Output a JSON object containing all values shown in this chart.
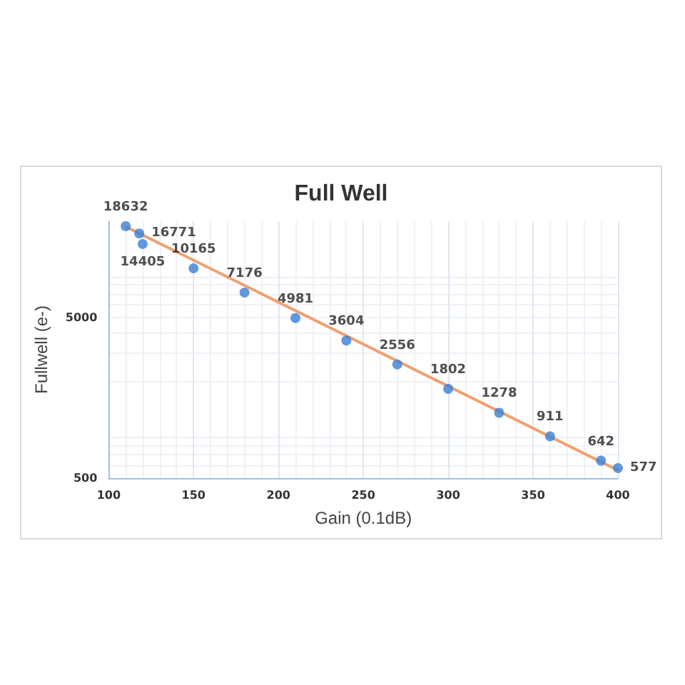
{
  "chart_data": {
    "type": "scatter",
    "title": "Full Well",
    "xlabel": "Gain (0.1dB)",
    "ylabel": "Fullwell (e-)",
    "x": [
      110,
      118,
      120,
      150,
      180,
      210,
      240,
      270,
      300,
      330,
      360,
      390,
      400
    ],
    "series": [
      {
        "type": "scatter",
        "color": "#3a7fd5",
        "marker": "circle",
        "values": [
          18632,
          16771,
          14405,
          10165,
          7176,
          4981,
          3604,
          2556,
          1802,
          1278,
          911,
          642,
          577
        ],
        "value_labels": [
          "18632",
          "16771",
          "14405",
          "10165",
          "7176",
          "4981",
          "3604",
          "2556",
          "1802",
          "1278",
          "911",
          "642",
          "577"
        ]
      },
      {
        "type": "line",
        "color": "#f0a070",
        "x": [
          110,
          400
        ],
        "values": [
          18500,
          560
        ]
      }
    ],
    "xlim": [
      100,
      400
    ],
    "xticks": [
      100,
      150,
      200,
      250,
      300,
      350,
      400
    ],
    "ylim": [
      500,
      20000
    ],
    "yticks": [
      500,
      5000
    ],
    "log": "y",
    "grid": true
  }
}
